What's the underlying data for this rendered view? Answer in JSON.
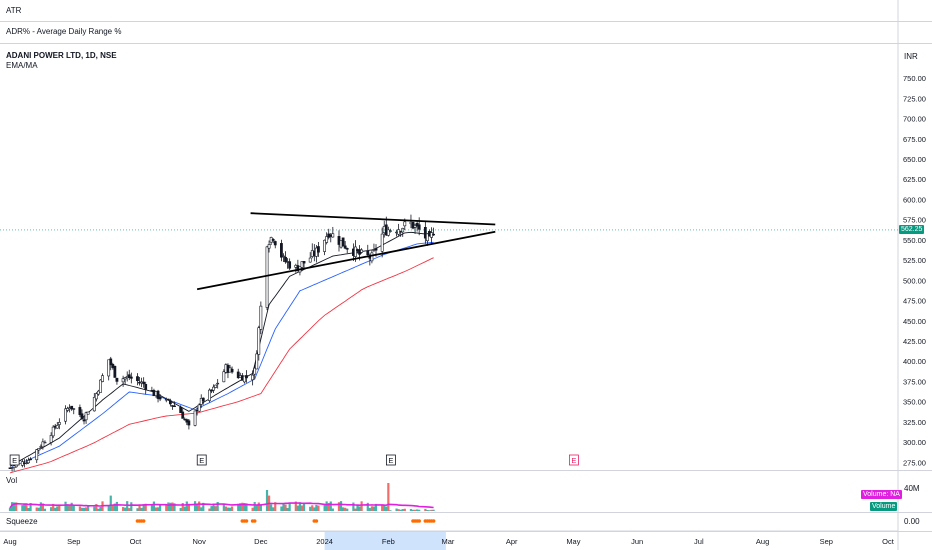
{
  "panes": {
    "atr_label": "ATR",
    "adr_label": "ADR% - Average Daily Range %",
    "symbol_title": "ADANI POWER LTD, 1D, NSE",
    "ema_label": "EMA/MA",
    "vol_label": "Vol",
    "squeeze_label": "Squeeze"
  },
  "price_axis": {
    "currency": "INR",
    "last_price": "562.25",
    "volume_badge_1": "Volume: NA",
    "volume_badge_2": "Volume",
    "volume_tick": "40M",
    "squeeze_tick": "0.00"
  },
  "colors": {
    "up": "#26a69a",
    "down": "#ef5350",
    "candle": "#131722",
    "ema_fast": "#131722",
    "ema_mid": "#2962ff",
    "ema_slow": "#f23645",
    "volume_ma": "#e020e0",
    "squeeze_dot": "#ff6d00",
    "last_price_bg": "#089981",
    "earnings_default": "#131722",
    "earnings_upcoming": "#e91e63",
    "highlight": "#bbd9fb"
  },
  "chart_data": {
    "type": "candlestick",
    "title": "ADANI POWER LTD, 1D, NSE",
    "ylabel": "INR",
    "ylim": [
      268,
      760
    ],
    "yticks": [
      275,
      300,
      325,
      350,
      375,
      400,
      425,
      450,
      475,
      500,
      525,
      550,
      575,
      600,
      625,
      650,
      675,
      700,
      725,
      750
    ],
    "ytick_labels": [
      "275.00",
      "300.00",
      "325.00",
      "350.00",
      "375.00",
      "400.00",
      "425.00",
      "450.00",
      "475.00",
      "500.00",
      "525.00",
      "550.00",
      "575.00",
      "600.00",
      "625.00",
      "650.00",
      "675.00",
      "700.00",
      "725.00",
      "750.00"
    ],
    "last_price": 562.25,
    "x_start": "2023-08-01",
    "x_end": "2024-10-31",
    "xtick_labels": [
      "Aug",
      "Sep",
      "Oct",
      "Nov",
      "Dec",
      "2024",
      "Feb",
      "Mar",
      "Apr",
      "May",
      "Jun",
      "Jul",
      "Aug",
      "Sep",
      "Oct"
    ],
    "xtick_dates": [
      "2023-08-01",
      "2023-09-01",
      "2023-10-01",
      "2023-11-01",
      "2023-12-01",
      "2024-01-01",
      "2024-02-01",
      "2024-03-01",
      "2024-04-01",
      "2024-05-01",
      "2024-06-01",
      "2024-07-01",
      "2024-08-01",
      "2024-09-01",
      "2024-10-01"
    ],
    "highlight_range": [
      "2024-01-01",
      "2024-02-29"
    ],
    "price_anchors": [
      [
        "2023-08-01",
        268
      ],
      [
        "2023-08-10",
        278
      ],
      [
        "2023-08-22",
        315
      ],
      [
        "2023-08-30",
        345
      ],
      [
        "2023-09-06",
        330
      ],
      [
        "2023-09-12",
        360
      ],
      [
        "2023-09-18",
        402
      ],
      [
        "2023-09-22",
        378
      ],
      [
        "2023-09-28",
        380
      ],
      [
        "2023-10-05",
        372
      ],
      [
        "2023-10-10",
        360
      ],
      [
        "2023-10-16",
        350
      ],
      [
        "2023-10-22",
        342
      ],
      [
        "2023-10-27",
        318
      ],
      [
        "2023-11-01",
        348
      ],
      [
        "2023-11-08",
        365
      ],
      [
        "2023-11-14",
        392
      ],
      [
        "2023-11-20",
        382
      ],
      [
        "2023-11-24",
        380
      ],
      [
        "2023-11-28",
        388
      ],
      [
        "2023-11-30",
        440
      ],
      [
        "2023-12-04",
        548
      ],
      [
        "2023-12-07",
        555
      ],
      [
        "2023-12-12",
        525
      ],
      [
        "2023-12-18",
        515
      ],
      [
        "2023-12-22",
        522
      ],
      [
        "2023-12-28",
        535
      ],
      [
        "2024-01-03",
        560
      ],
      [
        "2024-01-10",
        545
      ],
      [
        "2024-01-18",
        532
      ],
      [
        "2024-01-24",
        528
      ],
      [
        "2024-01-30",
        562
      ],
      [
        "2024-02-06",
        565
      ],
      [
        "2024-02-12",
        570
      ],
      [
        "2024-02-16",
        562
      ],
      [
        "2024-02-21",
        548
      ],
      [
        "2024-02-23",
        562
      ]
    ],
    "trendlines": [
      {
        "from": [
          "2023-11-26",
          583
        ],
        "to": [
          "2024-03-24",
          569
        ]
      },
      {
        "from": [
          "2023-10-31",
          489
        ],
        "to": [
          "2024-03-24",
          560
        ]
      }
    ],
    "ema_fast_anchors": [
      [
        "2023-08-01",
        270
      ],
      [
        "2023-08-25",
        305
      ],
      [
        "2023-09-15",
        352
      ],
      [
        "2023-09-25",
        372
      ],
      [
        "2023-10-10",
        362
      ],
      [
        "2023-10-27",
        338
      ],
      [
        "2023-11-10",
        360
      ],
      [
        "2023-11-27",
        385
      ],
      [
        "2023-12-05",
        470
      ],
      [
        "2023-12-15",
        505
      ],
      [
        "2024-01-05",
        530
      ],
      [
        "2024-01-25",
        538
      ],
      [
        "2024-02-10",
        560
      ],
      [
        "2024-02-23",
        556
      ]
    ],
    "ema_mid_anchors": [
      [
        "2023-08-01",
        268
      ],
      [
        "2023-08-25",
        295
      ],
      [
        "2023-09-15",
        335
      ],
      [
        "2023-09-28",
        362
      ],
      [
        "2023-10-12",
        357
      ],
      [
        "2023-10-30",
        340
      ],
      [
        "2023-11-15",
        360
      ],
      [
        "2023-11-28",
        378
      ],
      [
        "2023-12-08",
        440
      ],
      [
        "2023-12-20",
        487
      ],
      [
        "2024-01-10",
        510
      ],
      [
        "2024-01-30",
        532
      ],
      [
        "2024-02-15",
        545
      ],
      [
        "2024-02-23",
        547
      ]
    ],
    "ema_slow_anchors": [
      [
        "2023-08-01",
        262
      ],
      [
        "2023-08-20",
        275
      ],
      [
        "2023-09-10",
        298
      ],
      [
        "2023-09-28",
        322
      ],
      [
        "2023-10-15",
        332
      ],
      [
        "2023-10-31",
        336
      ],
      [
        "2023-11-20",
        350
      ],
      [
        "2023-12-01",
        360
      ],
      [
        "2023-12-15",
        415
      ],
      [
        "2023-12-31",
        455
      ],
      [
        "2024-01-20",
        490
      ],
      [
        "2024-02-10",
        512
      ],
      [
        "2024-02-23",
        528
      ]
    ],
    "earnings_markers": [
      {
        "date": "2023-08-03",
        "label": "E",
        "upcoming": false
      },
      {
        "date": "2023-11-02",
        "label": "E",
        "upcoming": false
      },
      {
        "date": "2024-02-02",
        "label": "E",
        "upcoming": false
      },
      {
        "date": "2024-05-01",
        "label": "E",
        "upcoming": true
      }
    ],
    "volume_spikes": [
      {
        "date": "2023-09-19",
        "value": 0.55
      },
      {
        "date": "2023-12-04",
        "value": 0.75
      },
      {
        "date": "2023-12-05",
        "value": 0.55
      },
      {
        "date": "2024-02-01",
        "value": 1.0
      }
    ],
    "squeeze_dot_ranges": [
      [
        "2023-10-01",
        "2023-10-05"
      ],
      [
        "2023-11-22",
        "2023-11-28"
      ],
      [
        "2023-12-27",
        "2023-12-28"
      ],
      [
        "2024-02-13",
        "2024-02-24"
      ]
    ]
  }
}
